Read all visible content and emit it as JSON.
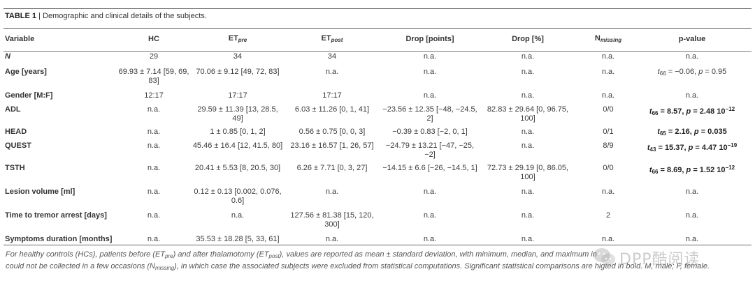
{
  "caption": {
    "label": "TABLE 1",
    "separator": " | ",
    "text": "Demographic and clinical details of the subjects."
  },
  "header": {
    "variable": "Variable",
    "hc": "HC",
    "et_pre_base": "ET",
    "et_pre_sub": "pre",
    "et_post_base": "ET",
    "et_post_sub": "post",
    "drop_points": "Drop [points]",
    "drop_pct": "Drop [%]",
    "nmissing_base": "N",
    "nmissing_sub": "missing",
    "pvalue": "p-value"
  },
  "rows": [
    {
      "variable": "N",
      "hc": "29",
      "et_pre": "34",
      "et_post": "34",
      "drop_points": "n.a.",
      "drop_pct": "n.a.",
      "nmissing": "n.a.",
      "pvalue": "n.a."
    },
    {
      "variable": "Age [years]",
      "hc": "69.93 ± 7.14 [59, 69, 83]",
      "et_pre": "70.06 ± 9.12 [49, 72, 83]",
      "et_post": "n.a.",
      "drop_points": "n.a.",
      "drop_pct": "n.a.",
      "nmissing": "n.a."
    },
    {
      "variable": "Gender [M:F]",
      "hc": "12:17",
      "et_pre": "17:17",
      "et_post": "17:17",
      "drop_points": "n.a.",
      "drop_pct": "n.a.",
      "nmissing": "n.a.",
      "pvalue": "n.a."
    },
    {
      "variable": "ADL",
      "hc": "n.a.",
      "et_pre": "29.59 ± 11.39 [13, 28.5, 49]",
      "et_post": "6.03 ± 11.26 [0, 1, 41]",
      "drop_points": "−23.56 ± 12.35 [−48, −24.5, 2]",
      "drop_pct": "82.83 ± 29.64 [0, 96.75, 100]",
      "nmissing": "0/0"
    },
    {
      "variable": "HEAD",
      "hc": "n.a.",
      "et_pre": "1 ± 0.85 [0, 1, 2]",
      "et_post": "0.56 ± 0.75 [0, 0, 3]",
      "drop_points": "−0.39 ± 0.83 [−2, 0, 1]",
      "drop_pct": "n.a.",
      "nmissing": "0/1"
    },
    {
      "variable": "QUEST",
      "hc": "n.a.",
      "et_pre": "45.46 ± 16.4 [12, 41.5, 80]",
      "et_post": "23.16 ± 16.57 [1, 26, 57]",
      "drop_points": "−24.79 ± 13.21 [−47, −25, −2]",
      "drop_pct": "n.a.",
      "nmissing": "8/9"
    },
    {
      "variable": "TSTH",
      "hc": "n.a.",
      "et_pre": "20.41 ± 5.53 [8, 20.5, 30]",
      "et_post": "6.26 ± 7.71 [0, 3, 27]",
      "drop_points": "−14.15 ± 6.6 [−26, −14.5, 1]",
      "drop_pct": "72.73 ± 29.19 [0, 86.05, 100]",
      "nmissing": "0/0"
    },
    {
      "variable": "Lesion volume [ml]",
      "hc": "n.a.",
      "et_pre": "0.12 ± 0.13 [0.002, 0.076, 0.6]",
      "et_post": "n.a.",
      "drop_points": "n.a.",
      "drop_pct": "n.a.",
      "nmissing": "n.a.",
      "pvalue": "n.a."
    },
    {
      "variable": "Time to tremor arrest [days]",
      "hc": "n.a.",
      "et_pre": "n.a.",
      "et_post": "127.56 ± 81.38 [15, 120, 300]",
      "drop_points": "n.a.",
      "drop_pct": "n.a.",
      "nmissing": "2",
      "pvalue": "n.a."
    },
    {
      "variable": "Symptoms duration [months]",
      "hc": "n.a.",
      "et_pre": "35.53 ± 18.28 [5, 33, 61]",
      "et_post": "n.a.",
      "drop_points": "n.a.",
      "drop_pct": "n.a.",
      "nmissing": "n.a.",
      "pvalue": "n.a."
    }
  ],
  "pvalues": {
    "age": {
      "t": "t",
      "df": "66",
      "rest": " = −0.06, ",
      "p": "p",
      "pval": " = 0.95"
    },
    "adl": {
      "t": "t",
      "df": "66",
      "rest": " = 8.57, ",
      "p": "p",
      "pval": " = 2.48 10",
      "exp": "−12"
    },
    "head": {
      "t": "t",
      "df": "65",
      "rest": " = 2.16, ",
      "p": "p",
      "pval": " = 0.035"
    },
    "quest": {
      "t": "t",
      "df": "43",
      "rest": " = 15.37, ",
      "p": "p",
      "pval": " = 4.47 10",
      "exp": "−19"
    },
    "tsth": {
      "t": "t",
      "df": "66",
      "rest": " = 8.69, ",
      "p": "p",
      "pval": " = 1.52 10",
      "exp": "−12"
    }
  },
  "footnote": {
    "part1": "For healthy controls (HCs), patients before (ET",
    "pre": "pre",
    "part2": ") and after thalamotomy (ET",
    "post": "post",
    "part3": "), values are reported as mean ± standard deviation, with minimum, median, and maximum in",
    "part3b": "could not be collected in a few occasions (N",
    "missing": "missing",
    "part4": "), in which case the associated subjects were excluded from statistical computations. Significant statistical comparisons are hig",
    "part5": "ted in bold. M, male; F, female."
  },
  "watermark": {
    "text": "DPP酷阅读"
  }
}
